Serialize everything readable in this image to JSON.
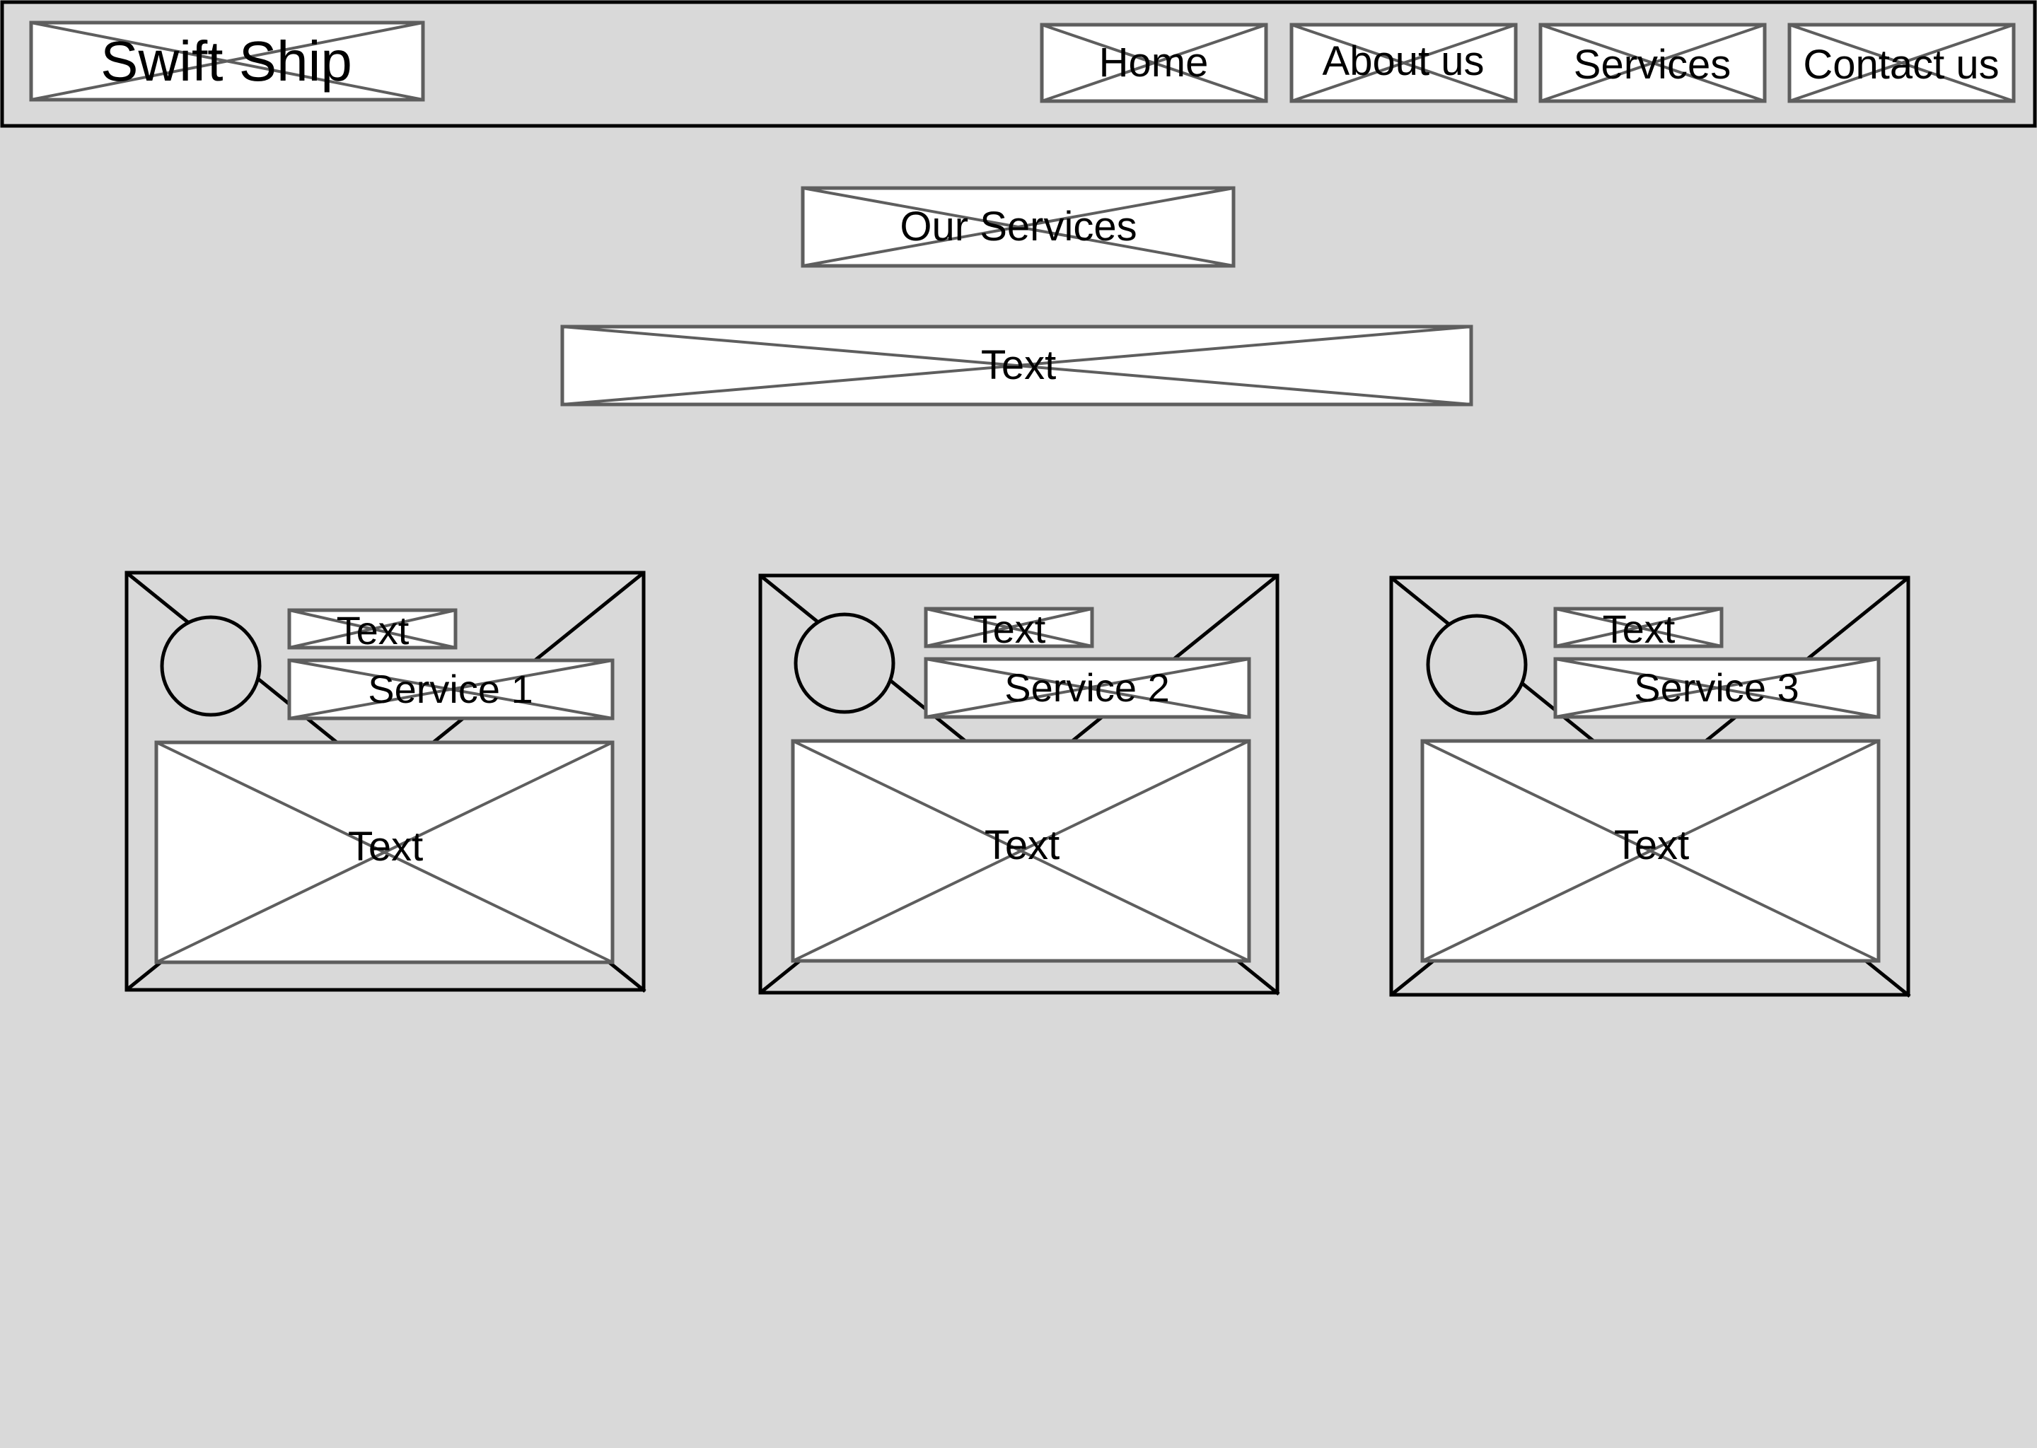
{
  "nav": {
    "logo": "Swift Ship",
    "links": [
      {
        "label": "Home"
      },
      {
        "label": "About us"
      },
      {
        "label": "Services"
      },
      {
        "label": "Contact us"
      }
    ]
  },
  "main": {
    "heading": "Our Services",
    "intro": "Text"
  },
  "cards": [
    {
      "tag": "Text",
      "title": "Service 1",
      "body": "Text"
    },
    {
      "tag": "Text",
      "title": "Service 2",
      "body": "Text"
    },
    {
      "tag": "Text",
      "title": "Service 3",
      "body": "Text"
    }
  ],
  "colors": {
    "page_background": "#d9d9d9",
    "placeholder_fill": "#ffffff",
    "placeholder_stroke": "#5e5e5e",
    "frame_stroke": "#000000",
    "text": "#000000"
  }
}
